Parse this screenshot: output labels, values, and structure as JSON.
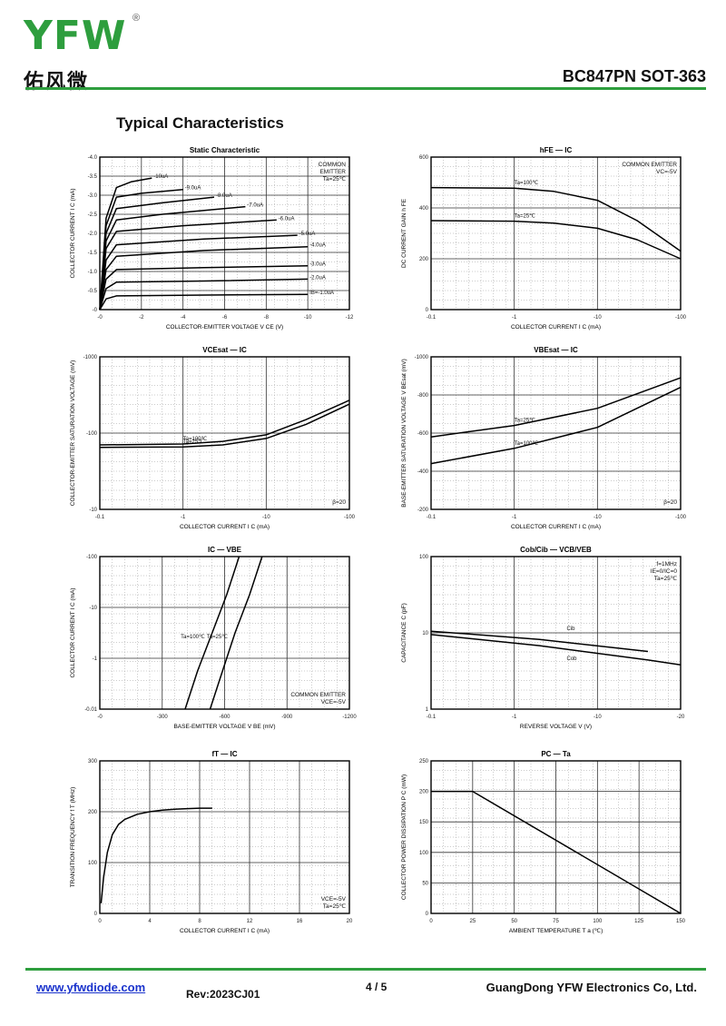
{
  "header": {
    "logo_letters": "YFW",
    "logo_registered": "®",
    "logo_cn": "佑风微",
    "part_title": "BC847PN SOT-363"
  },
  "section_title": "Typical Characteristics",
  "charts": [
    {
      "type": "line",
      "title": "Static Characteristic",
      "xlabel": "COLLECTOR-EMITTER VOLTAGE",
      "xsym": "V",
      "xsub": "CE",
      "xunit": "(V)",
      "ylabel": "COLLECTOR CURRENT",
      "ysym": "I",
      "ysub": "C",
      "yunit": "(mA)",
      "xscale": "linear",
      "yscale": "linear",
      "xlim": [
        0,
        -12
      ],
      "ylim": [
        0,
        -4.0
      ],
      "xticks": [
        "-0",
        "-2",
        "-4",
        "-6",
        "-8",
        "-10",
        "-12"
      ],
      "yticks": [
        "-0",
        "-0.5",
        "-1.0",
        "-1.5",
        "-2.0",
        "-2.5",
        "-3.0",
        "-3.5",
        "-4.0"
      ],
      "annotation": [
        "COMMON",
        "EMITTER",
        "Ta=25℃"
      ],
      "curve_labels": [
        "-10uA",
        "-9.0uA",
        "-8.0uA",
        "-7.0uA",
        "-6.0uA",
        "-5.0uA",
        "-4.0uA",
        "-3.0uA",
        "-2.0uA",
        "IB=-1.0uA"
      ],
      "chart_data": {
        "type": "line",
        "series": [
          {
            "name": "IB=-10uA",
            "x": [
              0,
              -0.3,
              -0.8,
              -1.5,
              -2.5
            ],
            "y": [
              0,
              -2.4,
              -3.2,
              -3.35,
              -3.45
            ]
          },
          {
            "name": "IB=-9.0uA",
            "x": [
              0,
              -0.3,
              -0.8,
              -2,
              -4
            ],
            "y": [
              0,
              -2.2,
              -2.95,
              -3.05,
              -3.15
            ]
          },
          {
            "name": "IB=-8.0uA",
            "x": [
              0,
              -0.3,
              -0.8,
              -3,
              -5.5
            ],
            "y": [
              0,
              -2.0,
              -2.65,
              -2.8,
              -2.95
            ]
          },
          {
            "name": "IB=-7.0uA",
            "x": [
              0,
              -0.3,
              -0.8,
              -3,
              -7
            ],
            "y": [
              0,
              -1.8,
              -2.35,
              -2.5,
              -2.7
            ]
          },
          {
            "name": "IB=-6.0uA",
            "x": [
              0,
              -0.3,
              -0.8,
              -4,
              -8.5
            ],
            "y": [
              0,
              -1.6,
              -2.05,
              -2.2,
              -2.35
            ]
          },
          {
            "name": "IB=-5.0uA",
            "x": [
              0,
              -0.3,
              -0.8,
              -5,
              -9.5
            ],
            "y": [
              0,
              -1.3,
              -1.7,
              -1.85,
              -1.95
            ]
          },
          {
            "name": "IB=-4.0uA",
            "x": [
              0,
              -0.3,
              -0.8,
              -5,
              -10
            ],
            "y": [
              0,
              -1.05,
              -1.4,
              -1.55,
              -1.65
            ]
          },
          {
            "name": "IB=-3.0uA",
            "x": [
              0,
              -0.3,
              -0.8,
              -5,
              -10
            ],
            "y": [
              0,
              -0.8,
              -1.05,
              -1.1,
              -1.15
            ]
          },
          {
            "name": "IB=-2.0uA",
            "x": [
              0,
              -0.3,
              -0.8,
              -5,
              -10
            ],
            "y": [
              0,
              -0.55,
              -0.72,
              -0.75,
              -0.8
            ]
          },
          {
            "name": "IB=-1.0uA",
            "x": [
              0,
              -0.3,
              -0.8,
              -5,
              -10
            ],
            "y": [
              0,
              -0.28,
              -0.36,
              -0.38,
              -0.4
            ]
          }
        ]
      }
    },
    {
      "type": "line",
      "title": "hFE — IC",
      "xlabel": "COLLECTOR CURRENT",
      "xsym": "I",
      "xsub": "C",
      "xunit": "(mA)",
      "ylabel": "DC CURRENT GAIN",
      "ysym": "h",
      "ysub": "FE",
      "yunit": "",
      "xscale": "log",
      "yscale": "linear",
      "xlim": [
        0.1,
        100
      ],
      "ylim": [
        0,
        600
      ],
      "xticks": [
        "-0.1",
        "-1",
        "-10",
        "-100"
      ],
      "yticks": [
        "0",
        "200",
        "400",
        "600"
      ],
      "annotation": [
        "COMMON EMITTER",
        "VC=-5V"
      ],
      "curve_labels": [
        "Ta=100℃",
        "Ta=25℃"
      ],
      "chart_data": {
        "type": "line",
        "series": [
          {
            "name": "Ta=100℃",
            "x": [
              0.1,
              1,
              3,
              10,
              30,
              100
            ],
            "y": [
              480,
              478,
              465,
              430,
              350,
              230
            ]
          },
          {
            "name": "Ta=25℃",
            "x": [
              0.1,
              1,
              3,
              10,
              30,
              100
            ],
            "y": [
              350,
              348,
              340,
              320,
              275,
              200
            ]
          }
        ]
      }
    },
    {
      "type": "line",
      "title": "VCEsat — IC",
      "xlabel": "COLLECTOR CURRENT",
      "xsym": "I",
      "xsub": "C",
      "xunit": "(mA)",
      "ylabel": "COLLECTOR-EMITTER SATURATION VOLTAGE",
      "ysym": "",
      "ysub": "",
      "yunit": "(mV)",
      "xscale": "log",
      "yscale": "log",
      "xlim": [
        0.1,
        100
      ],
      "ylim": [
        10,
        1000
      ],
      "xticks": [
        "-0.1",
        "-1",
        "-10",
        "-100"
      ],
      "yticks": [
        "-10",
        "-100",
        "-1000"
      ],
      "annotation": [
        "β=20"
      ],
      "curve_labels": [
        "Ta=100℃",
        "Ta=25℃"
      ],
      "chart_data": {
        "type": "line",
        "series": [
          {
            "name": "Ta=100℃",
            "x": [
              0.1,
              1,
              3,
              10,
              30,
              100
            ],
            "y": [
              70,
              72,
              78,
              95,
              150,
              270
            ]
          },
          {
            "name": "Ta=25℃",
            "x": [
              0.1,
              1,
              3,
              10,
              30,
              100
            ],
            "y": [
              65,
              66,
              70,
              85,
              130,
              240
            ]
          }
        ]
      }
    },
    {
      "type": "line",
      "title": "VBEsat — IC",
      "xlabel": "COLLECTOR CURRENT",
      "xsym": "I",
      "xsub": "C",
      "xunit": "(mA)",
      "ylabel": "BASE-EMITTER SATURATION VOLTAGE",
      "ysym": "V",
      "ysub": "BEsat",
      "yunit": "(mV)",
      "xscale": "log",
      "yscale": "linear",
      "xlim": [
        0.1,
        100
      ],
      "ylim": [
        -200,
        -1000
      ],
      "xticks": [
        "-0.1",
        "-1",
        "-10",
        "-100"
      ],
      "yticks": [
        "-200",
        "-400",
        "-600",
        "-800",
        "-1000"
      ],
      "annotation": [
        "β=20"
      ],
      "curve_labels": [
        "Ta=25℃",
        "Ta=100℃"
      ],
      "chart_data": {
        "type": "line",
        "series": [
          {
            "name": "Ta=25℃",
            "x": [
              0.1,
              1,
              10,
              100
            ],
            "y": [
              -580,
              -640,
              -730,
              -890
            ]
          },
          {
            "name": "Ta=100℃",
            "x": [
              0.1,
              1,
              10,
              100
            ],
            "y": [
              -440,
              -520,
              -630,
              -840
            ]
          }
        ]
      }
    },
    {
      "type": "line",
      "title": "IC — VBE",
      "xlabel": "BASE-EMITTER VOLTAGE",
      "xsym": "V",
      "xsub": "BE",
      "xunit": "(mV)",
      "ylabel": "COLLECTOR CURRENT",
      "ysym": "I",
      "ysub": "C",
      "yunit": "(mA)",
      "xscale": "linear",
      "yscale": "log",
      "xlim": [
        0,
        -1200
      ],
      "ylim": [
        0.01,
        100
      ],
      "xticks": [
        "-0",
        "-300",
        "-600",
        "-900",
        "-1200"
      ],
      "yticks": [
        "-0.01",
        "-1",
        "-10",
        "-100"
      ],
      "annotation": [
        "COMMON EMITTER",
        "VCE=-5V"
      ],
      "curve_labels": [
        "Ta=100℃",
        "Ta=25℃"
      ],
      "chart_data": {
        "type": "line",
        "series": [
          {
            "name": "Ta=100℃",
            "x": [
              -410,
              -470,
              -540,
              -610,
              -670
            ],
            "y": [
              0.01,
              0.1,
              1,
              10,
              100
            ]
          },
          {
            "name": "Ta=25℃",
            "x": [
              -530,
              -590,
              -650,
              -720,
              -780
            ],
            "y": [
              0.01,
              0.1,
              1,
              10,
              100
            ]
          }
        ]
      }
    },
    {
      "type": "line",
      "title": "Cob/Cib — VCB/VEB",
      "xlabel": "REVERSE VOLTAGE",
      "xsym": "V",
      "xsub": "",
      "xunit": "(V)",
      "ylabel": "CAPACITANCE",
      "ysym": "C",
      "ysub": "",
      "yunit": "(pF)",
      "xscale": "log",
      "yscale": "log",
      "xlim": [
        0.1,
        20
      ],
      "ylim": [
        1,
        100
      ],
      "xticks": [
        "-0.1",
        "-1",
        "-10",
        "-20"
      ],
      "yticks": [
        "1",
        "10",
        "100"
      ],
      "annotation": [
        "f=1MHz",
        "IE=0/IC=0",
        "Ta=25℃"
      ],
      "curve_labels": [
        "Cib",
        "Cob"
      ],
      "chart_data": {
        "type": "line",
        "series": [
          {
            "name": "Cib",
            "x": [
              0.1,
              1,
              10
            ],
            "y": [
              10.5,
              8.2,
              5.7
            ]
          },
          {
            "name": "Cob",
            "x": [
              0.1,
              1,
              10,
              20
            ],
            "y": [
              9.5,
              6.8,
              4.4,
              3.8
            ]
          }
        ]
      }
    },
    {
      "type": "line",
      "title": "fT — IC",
      "xlabel": "COLLECTOR CURRENT",
      "xsym": "I",
      "xsub": "C",
      "xunit": "(mA)",
      "ylabel": "TRANSITION FREQUENCY",
      "ysym": "f",
      "ysub": "T",
      "yunit": "(MHz)",
      "xscale": "linear",
      "yscale": "linear",
      "xlim": [
        0,
        20
      ],
      "ylim": [
        0,
        300
      ],
      "xticks": [
        "0",
        "4",
        "8",
        "12",
        "16",
        "20"
      ],
      "yticks": [
        "0",
        "100",
        "200",
        "300"
      ],
      "annotation": [
        "VCE=-5V",
        "Ta=25℃"
      ],
      "curve_labels": [],
      "chart_data": {
        "type": "line",
        "series": [
          {
            "name": "",
            "x": [
              0.1,
              0.3,
              0.6,
              1,
              1.5,
              2,
              3,
              4,
              5,
              6,
              7,
              8,
              9
            ],
            "y": [
              20,
              70,
              120,
              155,
              175,
              185,
              195,
              200,
              203,
              205,
              206,
              207,
              207
            ]
          }
        ]
      }
    },
    {
      "type": "line",
      "title": "PC — Ta",
      "xlabel": "AMBIENT TEMPERATURE",
      "xsym": "T",
      "xsub": "a",
      "xunit": "(℃)",
      "ylabel": "COLLECTOR POWER DISSIPATION",
      "ysym": "P",
      "ysub": "C",
      "yunit": "(mW)",
      "xscale": "linear",
      "yscale": "linear",
      "xlim": [
        0,
        150
      ],
      "ylim": [
        0,
        250
      ],
      "xticks": [
        "0",
        "25",
        "50",
        "75",
        "100",
        "125",
        "150"
      ],
      "yticks": [
        "0",
        "50",
        "100",
        "150",
        "200",
        "250"
      ],
      "annotation": [],
      "curve_labels": [],
      "chart_data": {
        "type": "line",
        "series": [
          {
            "name": "",
            "x": [
              0,
              25,
              150
            ],
            "y": [
              200,
              200,
              0
            ]
          }
        ]
      }
    }
  ],
  "footer": {
    "website": "www.yfwdiode.com",
    "revision": "Rev:2023CJ01",
    "page": "4 / 5",
    "company": "GuangDong YFW Electronics Co, Ltd."
  }
}
